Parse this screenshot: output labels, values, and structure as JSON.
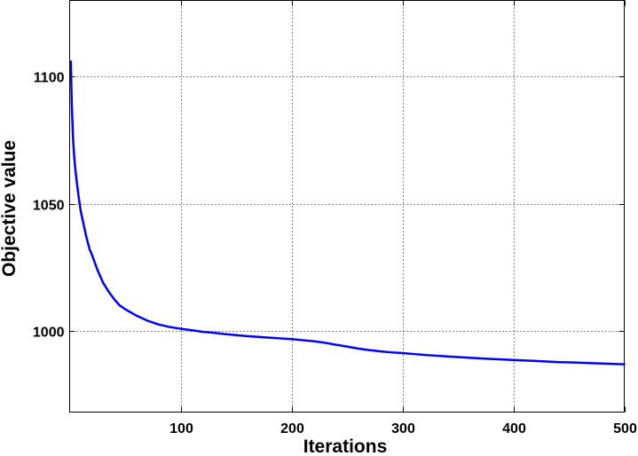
{
  "chart_data": {
    "type": "line",
    "title": "",
    "xlabel": "Iterations",
    "ylabel": "Objective value",
    "xlim": [
      0,
      500
    ],
    "ylim": [
      968,
      1130
    ],
    "grid": true,
    "xticks": [
      100,
      200,
      300,
      400,
      500
    ],
    "yticks": [
      1000,
      1050,
      1100
    ],
    "line_color": "#0000ff",
    "series": [
      {
        "x": [
          1,
          2,
          3,
          4,
          5,
          6,
          8,
          10,
          12,
          15,
          18,
          20,
          25,
          30,
          35,
          40,
          45,
          50,
          60,
          70,
          80,
          90,
          100,
          110,
          120,
          130,
          140,
          150,
          160,
          170,
          180,
          190,
          200,
          210,
          220,
          230,
          240,
          250,
          260,
          270,
          280,
          290,
          300,
          320,
          340,
          360,
          380,
          400,
          420,
          440,
          460,
          480,
          500
        ],
        "y": [
          1106,
          1088,
          1076,
          1069,
          1064,
          1060,
          1053,
          1047,
          1043,
          1037,
          1032,
          1030,
          1024,
          1019,
          1015.5,
          1012.5,
          1010,
          1008.5,
          1006,
          1004,
          1002.5,
          1001.5,
          1000.8,
          1000.2,
          999.6,
          999.2,
          998.7,
          998.3,
          997.9,
          997.6,
          997.3,
          997.0,
          996.7,
          996.3,
          995.9,
          995.3,
          994.5,
          993.8,
          993.0,
          992.4,
          991.9,
          991.5,
          991.2,
          990.5,
          989.9,
          989.4,
          988.9,
          988.5,
          988.1,
          987.7,
          987.4,
          987.1,
          986.8
        ]
      }
    ]
  }
}
